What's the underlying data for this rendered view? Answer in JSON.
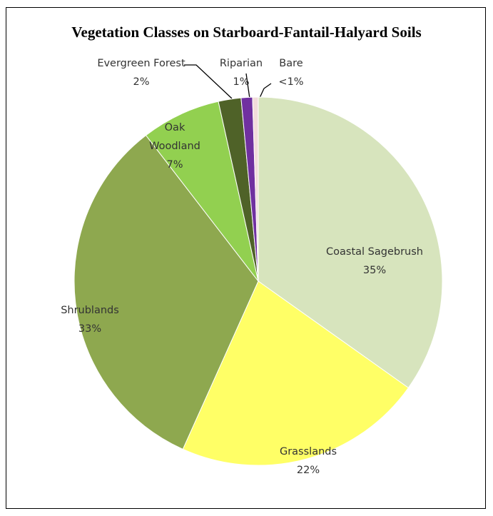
{
  "chart_data": {
    "type": "pie",
    "title": "Vegetation Classes on Starboard-Fantail-Halyard Soils",
    "categories": [
      "Coastal Sagebrush",
      "Grasslands",
      "Shrublands",
      "Oak Woodland",
      "Evergreen Forest",
      "Riparian",
      "Bare"
    ],
    "values": [
      35,
      22,
      33,
      7,
      2,
      1,
      0.5
    ],
    "value_labels": [
      "35%",
      "22%",
      "33%",
      "7%",
      "2%",
      "1%",
      "<1%"
    ],
    "colors": [
      "#d7e4bd",
      "#ffff66",
      "#8ea84f",
      "#92d050",
      "#4f6228",
      "#7030a0",
      "#f2dcdb"
    ]
  }
}
